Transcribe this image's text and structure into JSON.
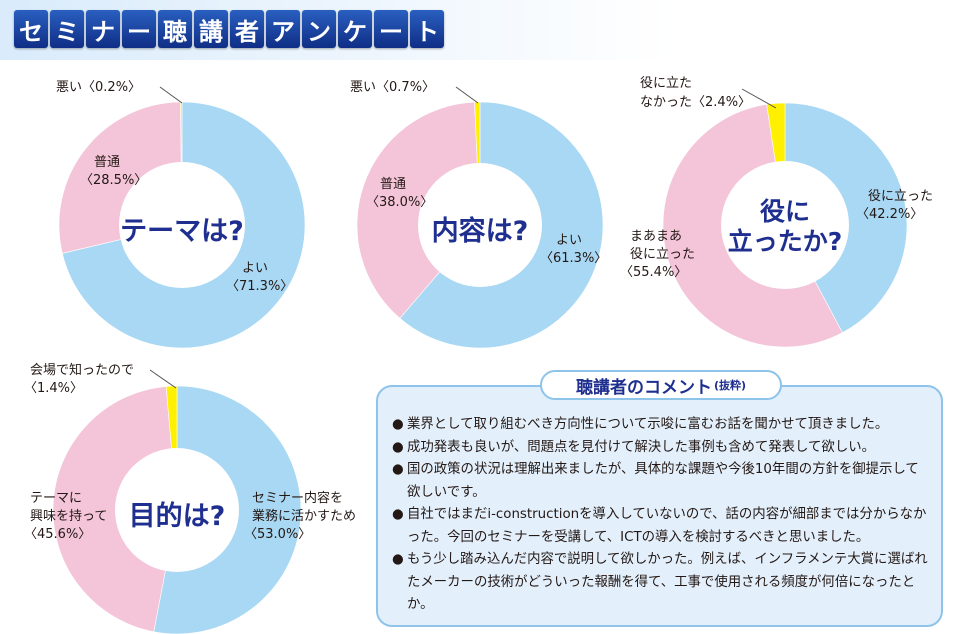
{
  "header": {
    "chars": [
      "セ",
      "ミ",
      "ナ",
      "ー",
      "聴",
      "講",
      "者",
      "ア",
      "ン",
      "ケ",
      "ー",
      "ト"
    ]
  },
  "colors": {
    "blue": "#a8d8f3",
    "pink": "#f4c5d8",
    "yellow": "#fff000",
    "title_navy": "#1f2f8f"
  },
  "chart_data": [
    {
      "type": "pie",
      "title": "テーマは?",
      "slices": [
        {
          "label": "よい",
          "value": 71.3,
          "value_text": "〈71.3%〉",
          "color": "#a8d8f3"
        },
        {
          "label": "普通",
          "value": 28.5,
          "value_text": "〈28.5%〉",
          "color": "#f4c5d8"
        },
        {
          "label": "悪い",
          "value": 0.2,
          "value_text": "〈0.2%〉",
          "color": "#fff000"
        }
      ]
    },
    {
      "type": "pie",
      "title": "内容は?",
      "slices": [
        {
          "label": "よい",
          "value": 61.3,
          "value_text": "〈61.3%〉",
          "color": "#a8d8f3"
        },
        {
          "label": "普通",
          "value": 38.0,
          "value_text": "〈38.0%〉",
          "color": "#f4c5d8"
        },
        {
          "label": "悪い",
          "value": 0.7,
          "value_text": "〈0.7%〉",
          "color": "#fff000"
        }
      ]
    },
    {
      "type": "pie",
      "title_lines": [
        "役に",
        "立ったか?"
      ],
      "slices": [
        {
          "label": "役に立った",
          "value": 42.2,
          "value_text": "〈42.2%〉",
          "color": "#a8d8f3"
        },
        {
          "label_lines": [
            "まあまあ",
            "役に立った"
          ],
          "value": 55.4,
          "value_text": "〈55.4%〉",
          "color": "#f4c5d8"
        },
        {
          "label_lines": [
            "役に立た",
            "なかった"
          ],
          "value": 2.4,
          "value_text": "〈2.4%〉",
          "color": "#fff000"
        }
      ]
    },
    {
      "type": "pie",
      "title": "目的は?",
      "slices": [
        {
          "label_lines": [
            "セミナー内容を",
            "業務に活かすため"
          ],
          "value": 53.0,
          "value_text": "〈53.0%〉",
          "color": "#a8d8f3"
        },
        {
          "label_lines": [
            "テーマに",
            "興味を持って"
          ],
          "value": 45.6,
          "value_text": "〈45.6%〉",
          "color": "#f4c5d8"
        },
        {
          "label": "会場で知ったので",
          "value": 1.4,
          "value_text": "〈1.4%〉",
          "color": "#fff000"
        }
      ]
    }
  ],
  "comments": {
    "title": "聴講者のコメント",
    "title_suffix": "(抜粋)",
    "bullet": "●",
    "items": [
      "業界として取り組むべき方向性について示唆に富むお話を聞かせて頂きました。",
      "成功発表も良いが、問題点を見付けて解決した事例も含めて発表して欲しい。",
      "国の政策の状況は理解出来ましたが、具体的な課題や今後10年間の方針を御提示して欲しいです。",
      "自社ではまだi-constructionを導入していないので、話の内容が細部までは分からなかった。今回のセミナーを受講して、ICTの導入を検討するべきと思いました。",
      "もう少し踏み込んだ内容で説明して欲しかった。例えば、インフラメンテ大賞に選ばれたメーカーの技術がどういった報酬を得て、工事で使用される頻度が何倍になったとか。"
    ]
  }
}
